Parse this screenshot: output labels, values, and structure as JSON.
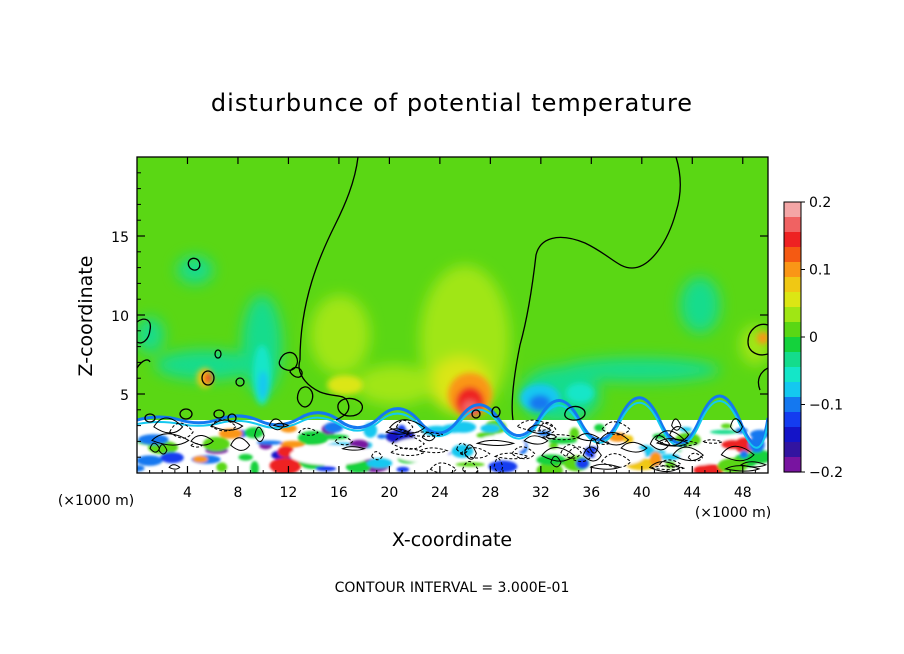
{
  "chart_data": {
    "type": "heatmap",
    "title": "disturbunce of potential temperature",
    "xlabel": "X-coordinate",
    "ylabel": "Z-coordinate",
    "x_unit": "(×1000 m)",
    "y_unit": "(×1000 m)",
    "xlim": [
      0,
      50
    ],
    "ylim": [
      0,
      20
    ],
    "x_ticks": [
      4,
      8,
      12,
      16,
      20,
      24,
      28,
      32,
      36,
      40,
      44,
      48
    ],
    "x_tick_labels": [
      "4",
      "8",
      "12",
      "16",
      "20",
      "24",
      "28",
      "32",
      "36",
      "40",
      "44",
      "48"
    ],
    "y_ticks": [
      5,
      10,
      15
    ],
    "y_tick_labels": [
      "5",
      "10",
      "15"
    ],
    "colorbar": {
      "range": [
        -0.2,
        0.2
      ],
      "ticks": [
        0.2,
        0.1,
        0,
        -0.1,
        -0.2
      ],
      "tick_labels": [
        "0.2",
        "0.1",
        "0",
        "−0.1",
        "−0.2"
      ],
      "colors": [
        "#f4a6a6",
        "#f06262",
        "#ee2222",
        "#f55a12",
        "#fa9616",
        "#f0c814",
        "#dce614",
        "#a0e614",
        "#5ad714",
        "#14d23c",
        "#14dc8c",
        "#14e6c8",
        "#14c8f0",
        "#1478f0",
        "#143cf0",
        "#1414c8",
        "#3214a0",
        "#7814a0"
      ]
    },
    "contour_interval_label": "CONTOUR INTERVAL = 3.000E-01",
    "background_value": 0.0,
    "features": [
      {
        "x": 26.5,
        "z": 4.4,
        "value": 0.13
      },
      {
        "x": 27.0,
        "z": 6.5,
        "value": 0.05
      },
      {
        "x": 26.0,
        "z": 9.0,
        "value": 0.03
      },
      {
        "x": 10.0,
        "z": 6.5,
        "value": -0.04
      },
      {
        "x": 10.5,
        "z": 4.8,
        "value": -0.07
      },
      {
        "x": 31.5,
        "z": 4.6,
        "value": -0.09
      },
      {
        "x": 34.0,
        "z": 5.5,
        "value": -0.04
      },
      {
        "x": 17.0,
        "z": 5.5,
        "value": 0.03
      },
      {
        "x": 5.0,
        "z": 12.5,
        "value": -0.02
      },
      {
        "x": 45.0,
        "z": 11.0,
        "value": -0.02
      }
    ]
  }
}
